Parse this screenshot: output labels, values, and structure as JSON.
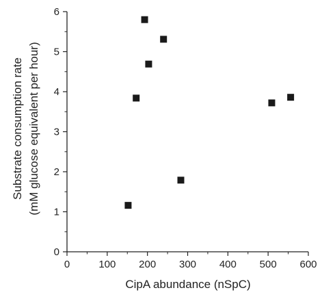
{
  "chart_data": {
    "type": "scatter",
    "xlabel": "CipA abundance (nSpC)",
    "ylabel_lines": [
      "Substrate consumption rate",
      "(mM glucose equivalent per hour)"
    ],
    "xlim": [
      0,
      600
    ],
    "ylim": [
      0,
      6
    ],
    "x_ticks": [
      0,
      100,
      200,
      300,
      400,
      500,
      600
    ],
    "x_tick_labels": [
      "0",
      "100",
      "200",
      "300",
      "400",
      "500",
      "600"
    ],
    "y_ticks": [
      0,
      1,
      2,
      3,
      4,
      5,
      6
    ],
    "y_tick_labels": [
      "0",
      "1",
      "2",
      "3",
      "4",
      "5",
      "6"
    ],
    "grid": false,
    "marker": "square",
    "marker_color": "#1a1a1a",
    "points": [
      {
        "x": 152,
        "y": 1.16
      },
      {
        "x": 172,
        "y": 3.84
      },
      {
        "x": 193,
        "y": 5.8
      },
      {
        "x": 203,
        "y": 4.69
      },
      {
        "x": 240,
        "y": 5.31
      },
      {
        "x": 283,
        "y": 1.79
      },
      {
        "x": 509,
        "y": 3.72
      },
      {
        "x": 556,
        "y": 3.86
      }
    ]
  }
}
